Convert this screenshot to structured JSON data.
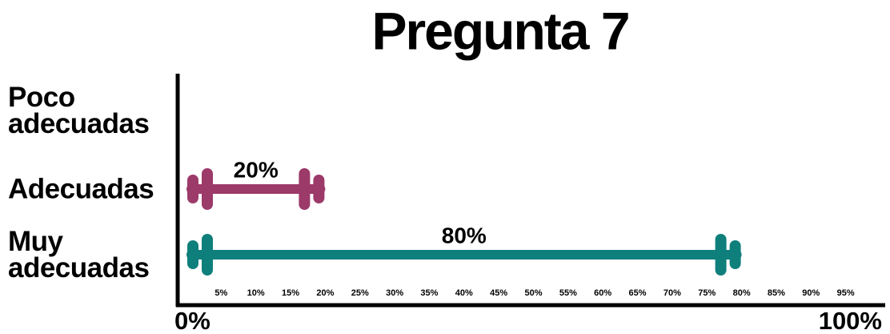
{
  "chart_data": {
    "type": "bar",
    "title": "Pregunta 7",
    "categories": [
      "Poco adecuadas",
      "Adecuadas",
      "Muy adecuadas"
    ],
    "values": [
      null,
      20,
      80
    ],
    "value_labels": [
      null,
      "20%",
      "80%"
    ],
    "colors": [
      null,
      "#9c3a6a",
      "#0f7f7c"
    ],
    "xlim": [
      0,
      100
    ],
    "xticks": [
      {
        "value": 0,
        "label": "0%"
      },
      {
        "value": 5,
        "label": "5%"
      },
      {
        "value": 10,
        "label": "10%"
      },
      {
        "value": 15,
        "label": "15%"
      },
      {
        "value": 20,
        "label": "20%"
      },
      {
        "value": 25,
        "label": "25%"
      },
      {
        "value": 30,
        "label": "30%"
      },
      {
        "value": 35,
        "label": "35%"
      },
      {
        "value": 40,
        "label": "40%"
      },
      {
        "value": 45,
        "label": "45%"
      },
      {
        "value": 50,
        "label": "50%"
      },
      {
        "value": 55,
        "label": "55%"
      },
      {
        "value": 60,
        "label": "60%"
      },
      {
        "value": 65,
        "label": "65%"
      },
      {
        "value": 70,
        "label": "70%"
      },
      {
        "value": 75,
        "label": "75%"
      },
      {
        "value": 80,
        "label": "80%"
      },
      {
        "value": 85,
        "label": "85%"
      },
      {
        "value": 90,
        "label": "90%"
      },
      {
        "value": 95,
        "label": "95%"
      },
      {
        "value": 100,
        "label": "100%"
      }
    ]
  }
}
